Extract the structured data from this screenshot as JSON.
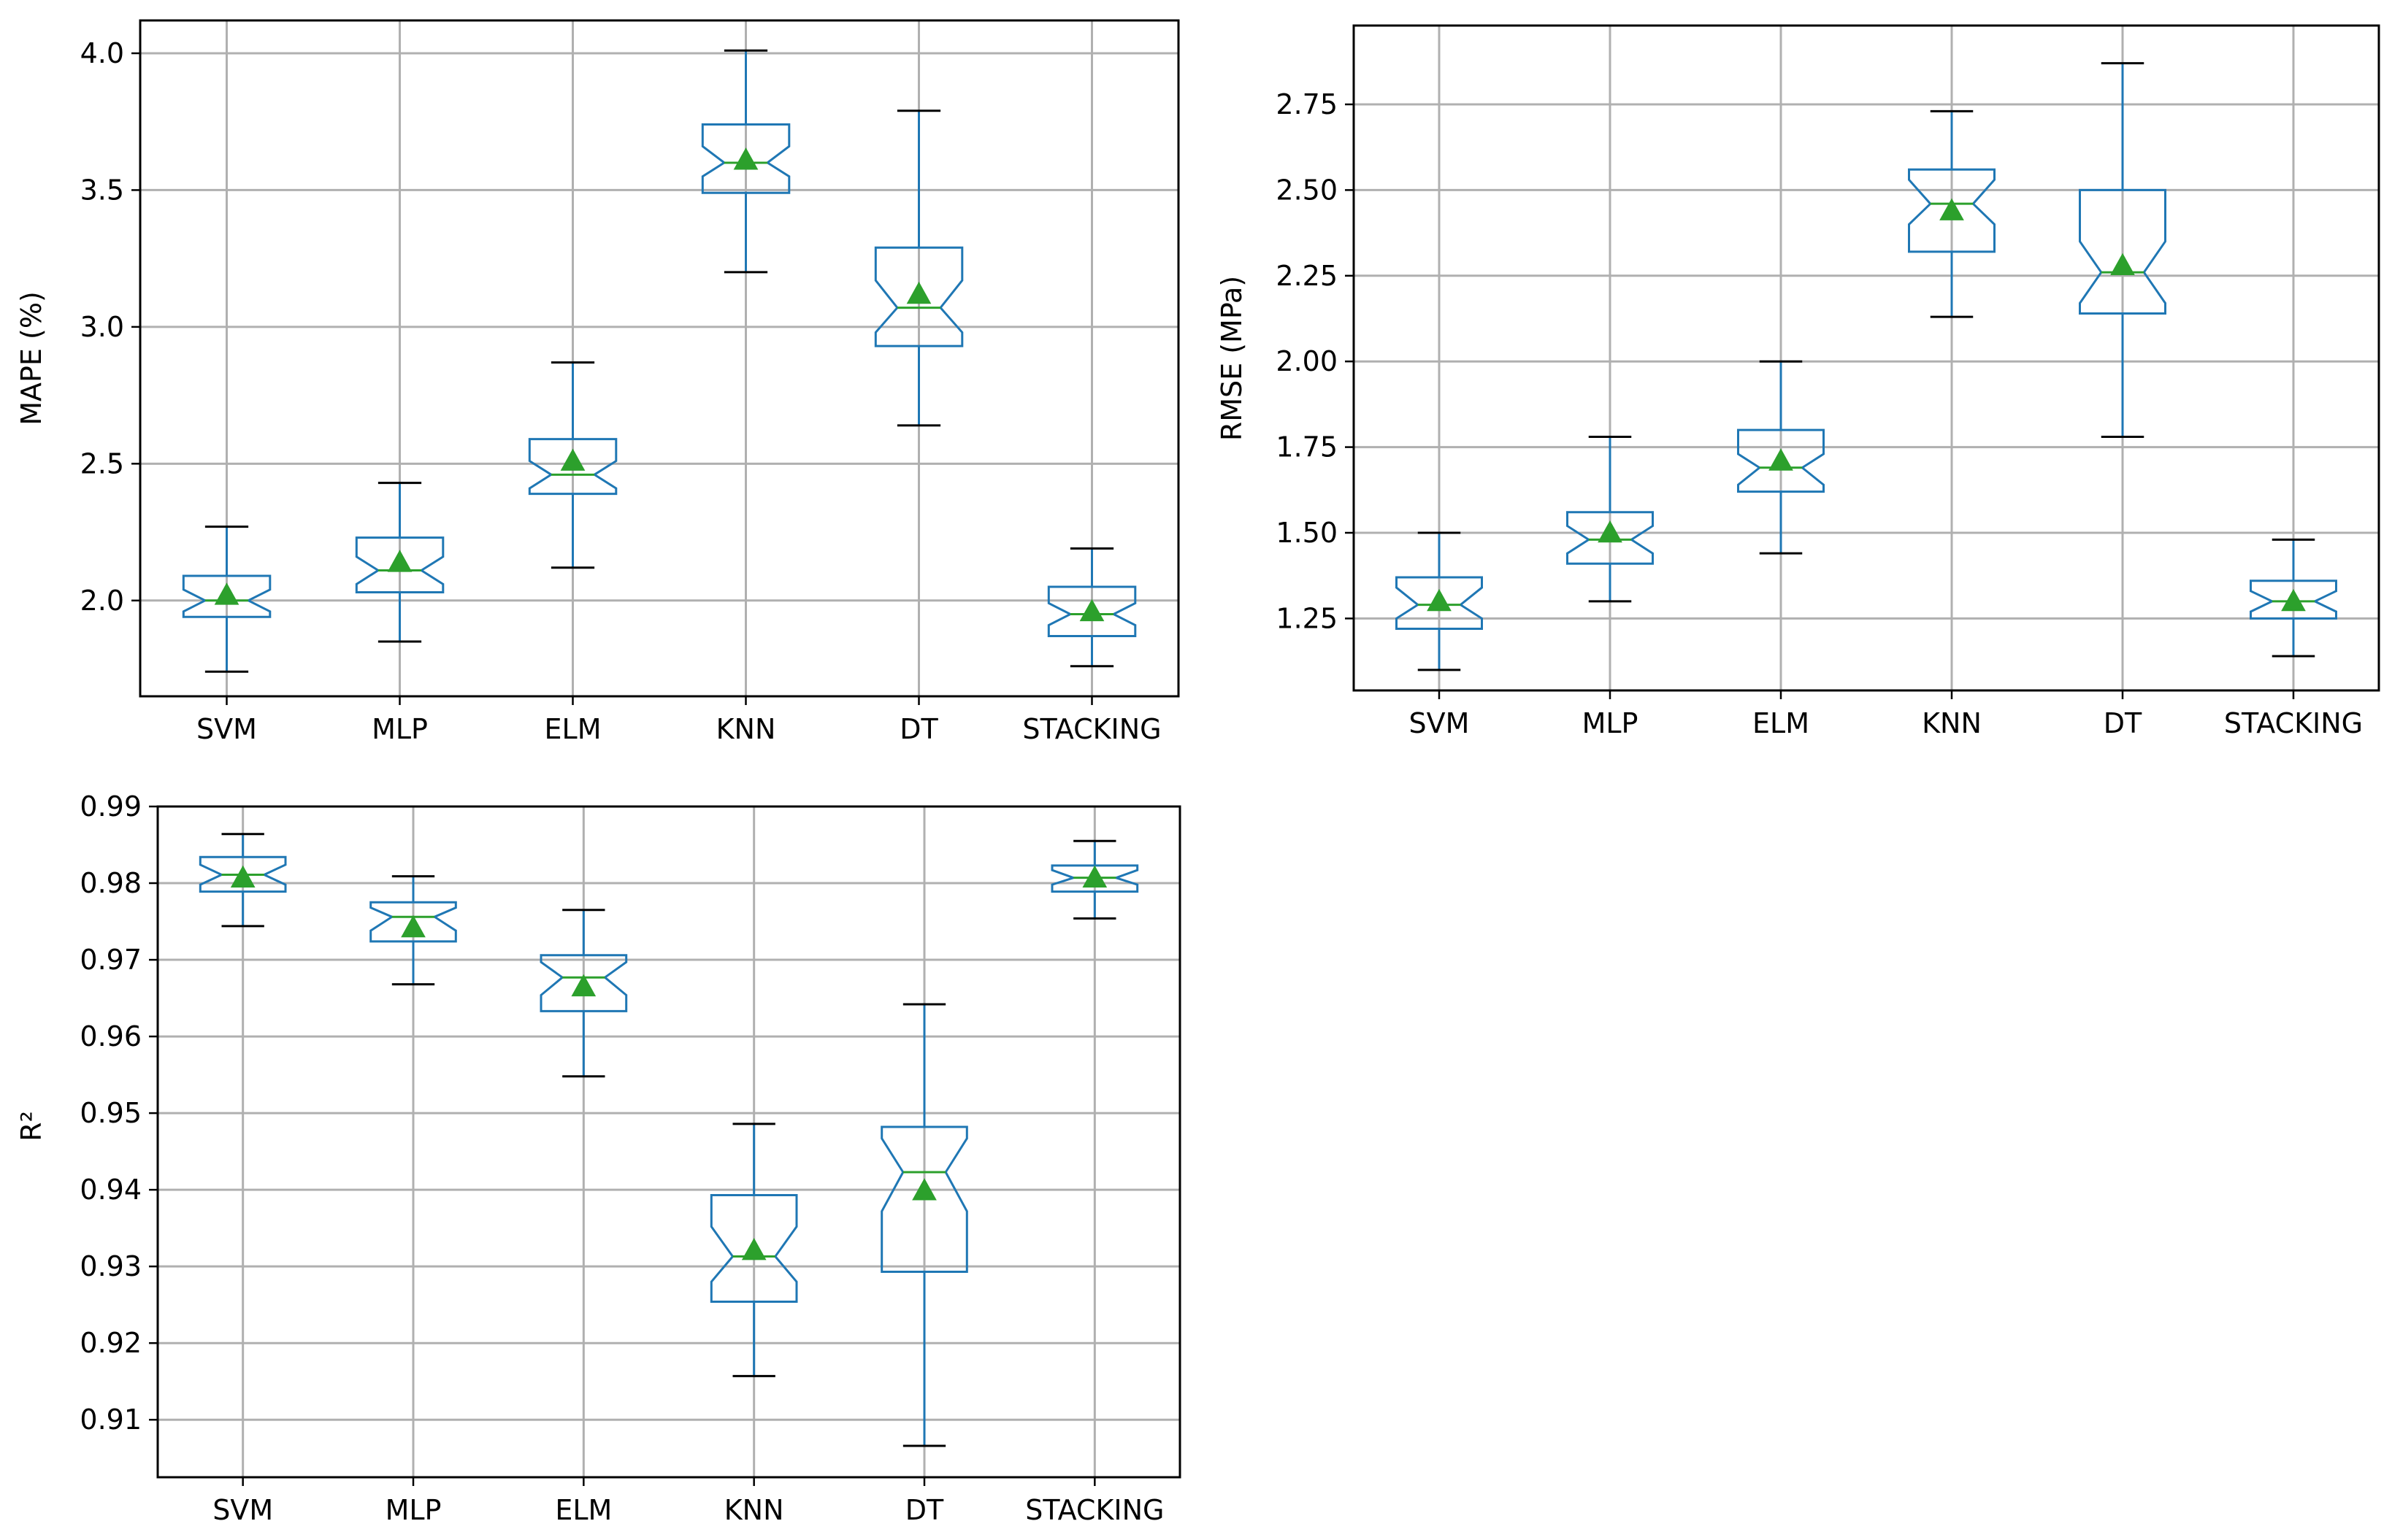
{
  "colors": {
    "box": "#1f77b4",
    "median": "#2ca02c",
    "mean": "#2ca02c",
    "whisker": "#1f77b4",
    "cap": "#000000",
    "grid": "#b0b0b0",
    "axes": "#000000"
  },
  "chart_data": [
    {
      "id": "mape",
      "type": "boxplot",
      "notched": true,
      "show_means": true,
      "xlabel": "",
      "ylabel": "MAPE (%)",
      "ylim": [
        1.65,
        4.12
      ],
      "yticks": [
        2.0,
        2.5,
        3.0,
        3.5,
        4.0
      ],
      "ytick_labels": [
        "2.0",
        "2.5",
        "3.0",
        "3.5",
        "4.0"
      ],
      "grid": true,
      "categories": [
        "SVM",
        "MLP",
        "ELM",
        "KNN",
        "DT",
        "STACKING"
      ],
      "boxes": [
        {
          "whislo": 1.74,
          "q1": 1.94,
          "med": 2.0,
          "q3": 2.09,
          "whishi": 2.27,
          "notch_lo": 1.96,
          "notch_hi": 2.04,
          "mean": 2.02
        },
        {
          "whislo": 1.85,
          "q1": 2.03,
          "med": 2.11,
          "q3": 2.23,
          "whishi": 2.43,
          "notch_lo": 2.06,
          "notch_hi": 2.16,
          "mean": 2.14
        },
        {
          "whislo": 2.12,
          "q1": 2.39,
          "med": 2.46,
          "q3": 2.59,
          "whishi": 2.87,
          "notch_lo": 2.41,
          "notch_hi": 2.51,
          "mean": 2.51
        },
        {
          "whislo": 3.2,
          "q1": 3.49,
          "med": 3.6,
          "q3": 3.74,
          "whishi": 4.01,
          "notch_lo": 3.55,
          "notch_hi": 3.66,
          "mean": 3.61
        },
        {
          "whislo": 2.64,
          "q1": 2.93,
          "med": 3.07,
          "q3": 3.29,
          "whishi": 3.79,
          "notch_lo": 2.98,
          "notch_hi": 3.17,
          "mean": 3.12
        },
        {
          "whislo": 1.76,
          "q1": 1.87,
          "med": 1.95,
          "q3": 2.05,
          "whishi": 2.19,
          "notch_lo": 1.91,
          "notch_hi": 1.99,
          "mean": 1.96
        }
      ]
    },
    {
      "id": "rmse",
      "type": "boxplot",
      "notched": true,
      "show_means": true,
      "xlabel": "",
      "ylabel": "RMSE (MPa)",
      "ylim": [
        1.04,
        2.98
      ],
      "yticks": [
        1.25,
        1.5,
        1.75,
        2.0,
        2.25,
        2.5,
        2.75
      ],
      "ytick_labels": [
        "1.25",
        "1.50",
        "1.75",
        "2.00",
        "2.25",
        "2.50",
        "2.75"
      ],
      "grid": true,
      "categories": [
        "SVM",
        "MLP",
        "ELM",
        "KNN",
        "DT",
        "STACKING"
      ],
      "boxes": [
        {
          "whislo": 1.1,
          "q1": 1.22,
          "med": 1.29,
          "q3": 1.37,
          "whishi": 1.5,
          "notch_lo": 1.25,
          "notch_hi": 1.34,
          "mean": 1.3
        },
        {
          "whislo": 1.3,
          "q1": 1.41,
          "med": 1.48,
          "q3": 1.56,
          "whishi": 1.78,
          "notch_lo": 1.44,
          "notch_hi": 1.52,
          "mean": 1.5
        },
        {
          "whislo": 1.44,
          "q1": 1.62,
          "med": 1.69,
          "q3": 1.8,
          "whishi": 2.0,
          "notch_lo": 1.64,
          "notch_hi": 1.73,
          "mean": 1.71
        },
        {
          "whislo": 2.13,
          "q1": 2.32,
          "med": 2.46,
          "q3": 2.56,
          "whishi": 2.73,
          "notch_lo": 2.4,
          "notch_hi": 2.53,
          "mean": 2.44
        },
        {
          "whislo": 1.78,
          "q1": 2.14,
          "med": 2.26,
          "q3": 2.5,
          "whishi": 2.87,
          "notch_lo": 2.17,
          "notch_hi": 2.35,
          "mean": 2.28
        },
        {
          "whislo": 1.14,
          "q1": 1.25,
          "med": 1.3,
          "q3": 1.36,
          "whishi": 1.48,
          "notch_lo": 1.27,
          "notch_hi": 1.33,
          "mean": 1.3
        }
      ]
    },
    {
      "id": "r2",
      "type": "boxplot",
      "notched": true,
      "show_means": true,
      "xlabel": "",
      "ylabel": "R²",
      "ylim": [
        0.9025,
        0.99
      ],
      "yticks": [
        0.91,
        0.92,
        0.93,
        0.94,
        0.95,
        0.96,
        0.97,
        0.98,
        0.99
      ],
      "ytick_labels": [
        "0.91",
        "0.92",
        "0.93",
        "0.94",
        "0.95",
        "0.96",
        "0.97",
        "0.98",
        "0.99"
      ],
      "grid": true,
      "categories": [
        "SVM",
        "MLP",
        "ELM",
        "KNN",
        "DT",
        "STACKING"
      ],
      "boxes": [
        {
          "whislo": 0.9744,
          "q1": 0.9789,
          "med": 0.9811,
          "q3": 0.9834,
          "whishi": 0.9864,
          "notch_lo": 0.9798,
          "notch_hi": 0.9824,
          "mean": 0.9807
        },
        {
          "whislo": 0.9668,
          "q1": 0.9724,
          "med": 0.9756,
          "q3": 0.9775,
          "whishi": 0.9809,
          "notch_lo": 0.9738,
          "notch_hi": 0.9768,
          "mean": 0.9742
        },
        {
          "whislo": 0.9548,
          "q1": 0.9633,
          "med": 0.9677,
          "q3": 0.9706,
          "whishi": 0.9765,
          "notch_lo": 0.9654,
          "notch_hi": 0.9697,
          "mean": 0.9665
        },
        {
          "whislo": 0.9157,
          "q1": 0.9254,
          "med": 0.9313,
          "q3": 0.9393,
          "whishi": 0.9486,
          "notch_lo": 0.928,
          "notch_hi": 0.9352,
          "mean": 0.9321
        },
        {
          "whislo": 0.9066,
          "q1": 0.9293,
          "med": 0.9423,
          "q3": 0.9482,
          "whishi": 0.9642,
          "notch_lo": 0.9372,
          "notch_hi": 0.9467,
          "mean": 0.9399
        },
        {
          "whislo": 0.9754,
          "q1": 0.9789,
          "med": 0.9807,
          "q3": 0.9823,
          "whishi": 0.9855,
          "notch_lo": 0.9798,
          "notch_hi": 0.9817,
          "mean": 0.9807
        }
      ]
    }
  ]
}
